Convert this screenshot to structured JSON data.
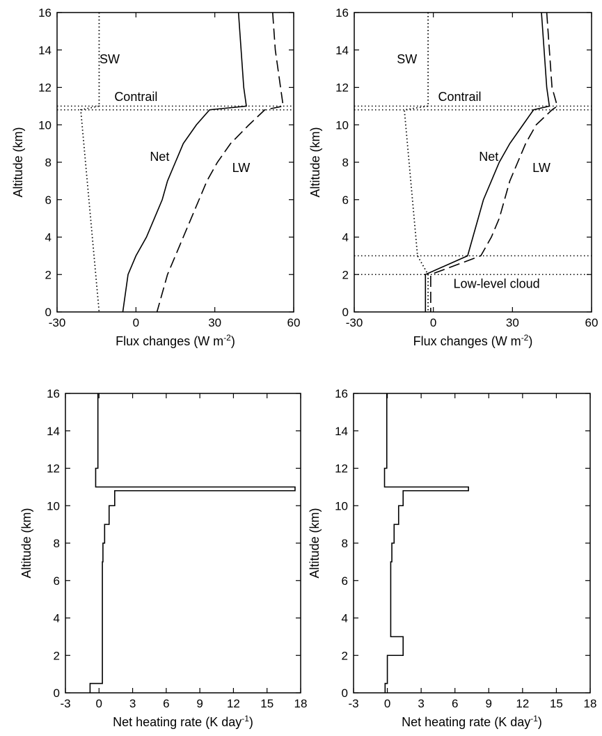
{
  "chart_data": [
    {
      "type": "line",
      "panel": "top-left",
      "xlabel": "Flux changes (W m",
      "xlabel_sup": "-2",
      "xlabel_tail": ")",
      "ylabel": "Altitude (km)",
      "xlim": [
        -30,
        60
      ],
      "ylim": [
        0,
        16
      ],
      "x_ticks": [
        -30,
        0,
        30,
        60
      ],
      "x_tick_labels": [
        "-30",
        "0",
        "30",
        "60"
      ],
      "y_ticks": [
        0,
        2,
        4,
        6,
        8,
        10,
        12,
        14,
        16
      ],
      "y_tick_labels": [
        "0",
        "2",
        "4",
        "6",
        "8",
        "10",
        "12",
        "14",
        "16"
      ],
      "series": [
        {
          "name": "SW",
          "style": "dotted",
          "points": [
            [
              -14,
              16
            ],
            [
              -14,
              11
            ],
            [
              -21,
              10.8
            ],
            [
              -14,
              0
            ]
          ]
        },
        {
          "name": "Net",
          "style": "solid",
          "points": [
            [
              39,
              16
            ],
            [
              40,
              14
            ],
            [
              41,
              12
            ],
            [
              42,
              11
            ],
            [
              28,
              10.8
            ],
            [
              23,
              10
            ],
            [
              18,
              9
            ],
            [
              15,
              8
            ],
            [
              12,
              7
            ],
            [
              10,
              6
            ],
            [
              7,
              5
            ],
            [
              4,
              4
            ],
            [
              0,
              3
            ],
            [
              -3,
              2
            ],
            [
              -4,
              1
            ],
            [
              -5,
              0
            ]
          ]
        },
        {
          "name": "LW",
          "style": "dashed",
          "points": [
            [
              52,
              16
            ],
            [
              53,
              14
            ],
            [
              55,
              12
            ],
            [
              56,
              11
            ],
            [
              49,
              10.8
            ],
            [
              43,
              10
            ],
            [
              36,
              9
            ],
            [
              31,
              8
            ],
            [
              27,
              7
            ],
            [
              24,
              6
            ],
            [
              21,
              5
            ],
            [
              18,
              4
            ],
            [
              15,
              3
            ],
            [
              12,
              2
            ],
            [
              10,
              1
            ],
            [
              8,
              0
            ]
          ]
        }
      ],
      "hlines": [
        {
          "y": 11,
          "style": "dotted"
        },
        {
          "y": 10.8,
          "style": "dotted"
        }
      ],
      "annotations": [
        {
          "text": "SW",
          "x": -10,
          "y": 13.5
        },
        {
          "text": "Contrail",
          "x": 0,
          "y": 11.5
        },
        {
          "text": "Net",
          "x": 9,
          "y": 8.3
        },
        {
          "text": "LW",
          "x": 40,
          "y": 7.7
        }
      ]
    },
    {
      "type": "line",
      "panel": "top-right",
      "xlabel": "Flux changes (W m",
      "xlabel_sup": "-2",
      "xlabel_tail": ")",
      "ylabel": "Altitude (km)",
      "xlim": [
        -30,
        60
      ],
      "ylim": [
        0,
        16
      ],
      "x_ticks": [
        -30,
        0,
        30,
        60
      ],
      "x_tick_labels": [
        "-30",
        "0",
        "30",
        "60"
      ],
      "y_ticks": [
        0,
        2,
        4,
        6,
        8,
        10,
        12,
        14,
        16
      ],
      "y_tick_labels": [
        "0",
        "2",
        "4",
        "6",
        "8",
        "10",
        "12",
        "14",
        "16"
      ],
      "series": [
        {
          "name": "SW",
          "style": "dotted",
          "points": [
            [
              -2,
              16
            ],
            [
              -2,
              11
            ],
            [
              -11,
              10.8
            ],
            [
              -6,
              3
            ],
            [
              -2,
              2
            ],
            [
              -2,
              0
            ]
          ]
        },
        {
          "name": "Net",
          "style": "solid",
          "points": [
            [
              41,
              16
            ],
            [
              42,
              14
            ],
            [
              43,
              12
            ],
            [
              44,
              11
            ],
            [
              38,
              10.8
            ],
            [
              34,
              10
            ],
            [
              29,
              9
            ],
            [
              25,
              8
            ],
            [
              22,
              7
            ],
            [
              19,
              6
            ],
            [
              17,
              5
            ],
            [
              15,
              4
            ],
            [
              13,
              3
            ],
            [
              -3,
              2
            ],
            [
              -3,
              1
            ],
            [
              -3,
              0
            ]
          ]
        },
        {
          "name": "LW",
          "style": "dashed",
          "points": [
            [
              43,
              16
            ],
            [
              44,
              14
            ],
            [
              45,
              12
            ],
            [
              47,
              11
            ],
            [
              45,
              10.8
            ],
            [
              39,
              10
            ],
            [
              35,
              9
            ],
            [
              32,
              8
            ],
            [
              29,
              7
            ],
            [
              27,
              6
            ],
            [
              25,
              5
            ],
            [
              22,
              4
            ],
            [
              18,
              3
            ],
            [
              -1,
              2
            ],
            [
              -1,
              1
            ],
            [
              -1,
              0
            ]
          ]
        }
      ],
      "hlines": [
        {
          "y": 11,
          "style": "dotted"
        },
        {
          "y": 10.8,
          "style": "dotted"
        },
        {
          "y": 3,
          "style": "dotted"
        },
        {
          "y": 2,
          "style": "dotted"
        }
      ],
      "annotations": [
        {
          "text": "SW",
          "x": -10,
          "y": 13.5
        },
        {
          "text": "Contrail",
          "x": 10,
          "y": 11.5
        },
        {
          "text": "Net",
          "x": 21,
          "y": 8.3
        },
        {
          "text": "LW",
          "x": 41,
          "y": 7.7
        },
        {
          "text": "Low-level cloud",
          "x": 24,
          "y": 1.5
        }
      ]
    },
    {
      "type": "line",
      "panel": "bottom-left",
      "xlabel": "Net heating rate (K day",
      "xlabel_sup": "-1",
      "xlabel_tail": ")",
      "ylabel": "Altitude (km)",
      "xlim": [
        -3,
        18
      ],
      "ylim": [
        0,
        16
      ],
      "x_ticks": [
        -3,
        0,
        3,
        6,
        9,
        12,
        15,
        18
      ],
      "x_tick_labels": [
        "-3",
        "0",
        "3",
        "6",
        "9",
        "12",
        "15",
        "18"
      ],
      "y_ticks": [
        0,
        2,
        4,
        6,
        8,
        10,
        12,
        14,
        16
      ],
      "y_tick_labels": [
        "0",
        "2",
        "4",
        "6",
        "8",
        "10",
        "12",
        "14",
        "16"
      ],
      "series": [
        {
          "name": "",
          "style": "solid",
          "points": [
            [
              -0.1,
              16
            ],
            [
              -0.1,
              12
            ],
            [
              -0.3,
              12
            ],
            [
              -0.3,
              11
            ],
            [
              17.5,
              11
            ],
            [
              17.5,
              10.8
            ],
            [
              1.4,
              10.8
            ],
            [
              1.4,
              10
            ],
            [
              0.9,
              10
            ],
            [
              0.9,
              9
            ],
            [
              0.5,
              9
            ],
            [
              0.5,
              8
            ],
            [
              0.35,
              8
            ],
            [
              0.35,
              7
            ],
            [
              0.3,
              7
            ],
            [
              0.3,
              0.5
            ],
            [
              -0.8,
              0.5
            ],
            [
              -0.8,
              0
            ]
          ]
        }
      ]
    },
    {
      "type": "line",
      "panel": "bottom-right",
      "xlabel": "Net heating rate (K day",
      "xlabel_sup": "-1",
      "xlabel_tail": ")",
      "ylabel": "Altitude (km)",
      "xlim": [
        -3,
        18
      ],
      "ylim": [
        0,
        16
      ],
      "x_ticks": [
        -3,
        0,
        3,
        6,
        9,
        12,
        15,
        18
      ],
      "x_tick_labels": [
        "-3",
        "0",
        "3",
        "6",
        "9",
        "12",
        "15",
        "18"
      ],
      "y_ticks": [
        0,
        2,
        4,
        6,
        8,
        10,
        12,
        14,
        16
      ],
      "y_tick_labels": [
        "0",
        "2",
        "4",
        "6",
        "8",
        "10",
        "12",
        "14",
        "16"
      ],
      "series": [
        {
          "name": "",
          "style": "solid",
          "points": [
            [
              -0.05,
              16
            ],
            [
              -0.05,
              12
            ],
            [
              -0.25,
              12
            ],
            [
              -0.25,
              11
            ],
            [
              7.2,
              11
            ],
            [
              7.2,
              10.8
            ],
            [
              1.4,
              10.8
            ],
            [
              1.4,
              10
            ],
            [
              1.0,
              10
            ],
            [
              1.0,
              9
            ],
            [
              0.6,
              9
            ],
            [
              0.6,
              8
            ],
            [
              0.4,
              8
            ],
            [
              0.4,
              7
            ],
            [
              0.3,
              7
            ],
            [
              0.3,
              3
            ],
            [
              1.4,
              3
            ],
            [
              1.4,
              2
            ],
            [
              0.0,
              2
            ],
            [
              0.0,
              0.5
            ],
            [
              -0.2,
              0.5
            ],
            [
              -0.2,
              0
            ]
          ]
        }
      ]
    }
  ]
}
